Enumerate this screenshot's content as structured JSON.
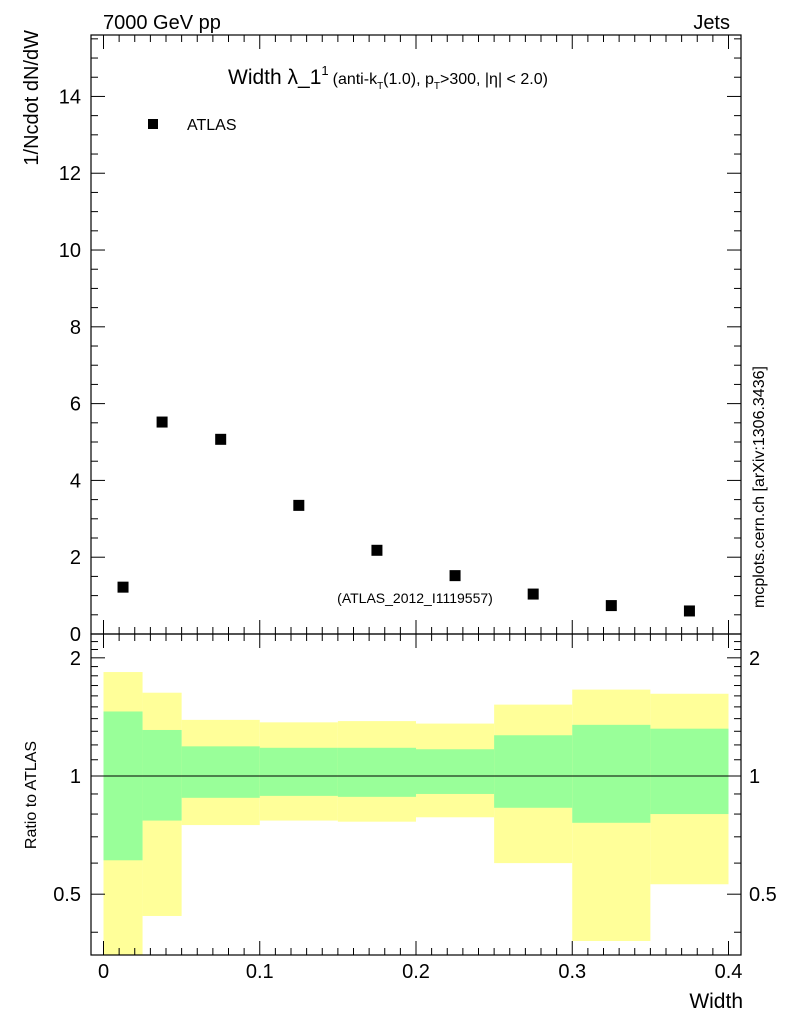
{
  "header": {
    "left": "7000 GeV pp",
    "right": "Jets"
  },
  "side_label": "mcplots.cern.ch [arXiv:1306.3436]",
  "watermark": "(ATLAS_2012_I1119557)",
  "title": {
    "prefix": "Width λ_1",
    "sup": "1",
    "rest1": "(anti-k",
    "sub1": "T",
    "rest2": "(1.0), p",
    "sub2": "T",
    "rest3": ">300, |η| < 2.0)"
  },
  "legend": {
    "label": "ATLAS"
  },
  "chart_data": [
    {
      "type": "scatter",
      "ylabel": "1/Ncdot dN/dW",
      "xlim": [
        -0.008,
        0.408
      ],
      "ylim": [
        0,
        15.6
      ],
      "ytick_labels": [
        "0",
        "2",
        "4",
        "6",
        "8",
        "10",
        "12",
        "14"
      ],
      "series": [
        {
          "name": "ATLAS",
          "color": "#000000",
          "x": [
            0.0125,
            0.0375,
            0.075,
            0.125,
            0.175,
            0.225,
            0.275,
            0.325,
            0.375
          ],
          "y": [
            1.22,
            5.52,
            5.07,
            3.35,
            2.18,
            1.52,
            1.04,
            0.74,
            0.6
          ]
        }
      ]
    },
    {
      "type": "area",
      "ylabel": "Ratio to ATLAS",
      "xlabel": "Width",
      "xlim": [
        -0.008,
        0.408
      ],
      "ylim": [
        0.35,
        2.3
      ],
      "yscale": "log",
      "ytick_labels": [
        "0.5",
        "1",
        "2"
      ],
      "xtick_labels": [
        "0",
        "0.1",
        "0.2",
        "0.3",
        "0.4"
      ],
      "bin_edges": [
        0,
        0.025,
        0.05,
        0.1,
        0.15,
        0.2,
        0.25,
        0.3,
        0.35,
        0.4
      ],
      "bands": [
        {
          "name": "total uncertainty",
          "color": "#ffff99",
          "lower": [
            0.35,
            0.44,
            0.75,
            0.77,
            0.765,
            0.785,
            0.6,
            0.38,
            0.53
          ],
          "upper": [
            1.84,
            1.63,
            1.39,
            1.37,
            1.38,
            1.36,
            1.52,
            1.66,
            1.62
          ]
        },
        {
          "name": "statistical uncertainty",
          "color": "#99ff99",
          "lower": [
            0.61,
            0.77,
            0.88,
            0.89,
            0.885,
            0.9,
            0.83,
            0.76,
            0.8
          ],
          "upper": [
            1.46,
            1.31,
            1.19,
            1.18,
            1.18,
            1.17,
            1.27,
            1.35,
            1.32
          ]
        }
      ],
      "reference_line": 1
    }
  ]
}
